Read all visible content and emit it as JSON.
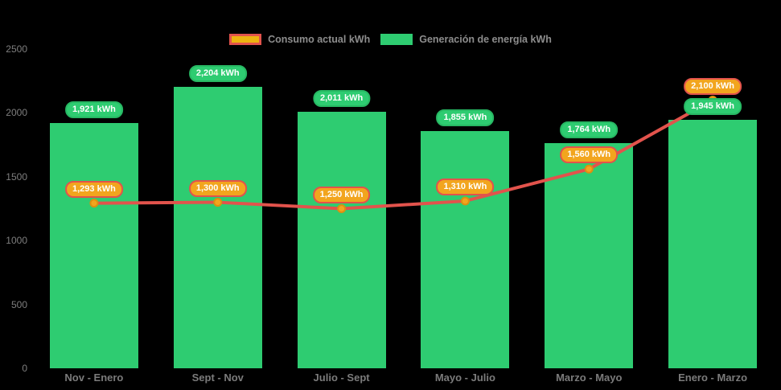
{
  "legend": {
    "items": [
      {
        "id": "consumption",
        "label": "Consumo actual kWh"
      },
      {
        "id": "generation",
        "label": "Generación de energía kWh"
      }
    ]
  },
  "chart_data": {
    "type": "bar",
    "categories": [
      "Nov - Enero",
      "Sept - Nov",
      "Julio - Sept",
      "Mayo - Julio",
      "Marzo - Mayo",
      "Enero - Marzo"
    ],
    "series": [
      {
        "name": "Generación de energía kWh",
        "type": "bar",
        "color": "#2ecc71",
        "values": [
          1921,
          2204,
          2011,
          1855,
          1764,
          1945
        ],
        "labels": [
          "1,921 kWh",
          "2,204 kWh",
          "2,011 kWh",
          "1,855 kWh",
          "1,764 kWh",
          "1,945 kWh"
        ]
      },
      {
        "name": "Consumo actual kWh",
        "type": "line",
        "color": "#e2534c",
        "values": [
          1293,
          1300,
          1250,
          1310,
          1560,
          2100
        ],
        "labels": [
          "1,293 kWh",
          "1,300 kWh",
          "1,250 kWh",
          "1,310 kWh",
          "1,560 kWh",
          "2,100 kWh"
        ]
      }
    ],
    "ylim": [
      0,
      2500
    ],
    "yticks": [
      0,
      500,
      1000,
      1500,
      2000,
      2500
    ],
    "grid": false,
    "legend_position": "top",
    "background": "#000000"
  },
  "colors": {
    "bar": "#2ecc71",
    "bar_label_bg": "#2ecc71",
    "bar_label_border": "#27b863",
    "line": "#e2534c",
    "point_fill": "#f2a51e",
    "point_stroke": "#dd8f10",
    "line_label_bg": "#f2a51e",
    "line_label_border": "#e2534c",
    "legend_consumption_fill": "#edb310",
    "legend_consumption_border": "#e2534c",
    "legend_generation_fill": "#2ecc71",
    "axis_text": "#7f7f7f",
    "label_text": "#ffffff"
  }
}
